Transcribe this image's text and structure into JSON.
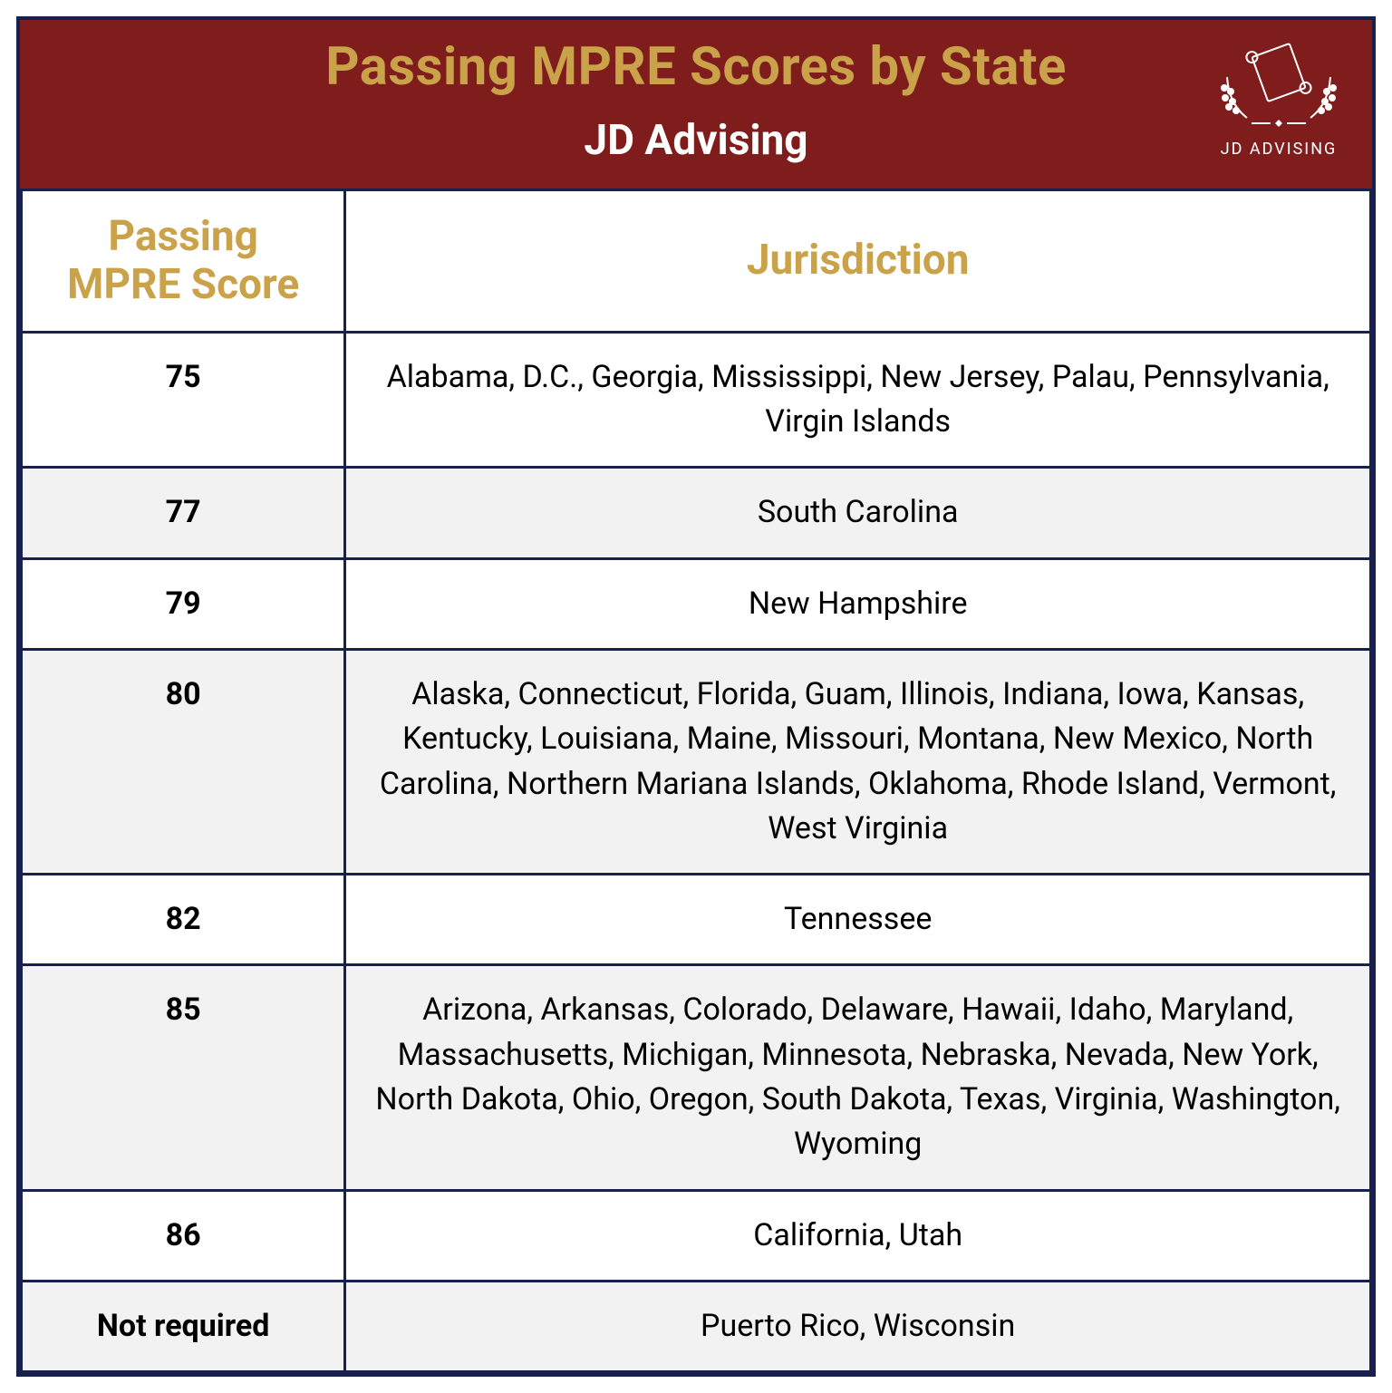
{
  "colors": {
    "border": "#18214d",
    "header_bg": "#7f1d1d",
    "title": "#c9a24a",
    "row_alt_bg": "#f2f2f2"
  },
  "header": {
    "title": "Passing MPRE Scores by State",
    "subtitle": "JD Advising",
    "logo_text": "JD ADVISING"
  },
  "columns": {
    "score": "Passing MPRE Score",
    "jurisdiction": "Jurisdiction"
  },
  "rows": [
    {
      "score": "75",
      "jurisdiction": "Alabama, D.C., Georgia, Mississippi, New Jersey, Palau, Pennsylvania, Virgin Islands",
      "alt": false
    },
    {
      "score": "77",
      "jurisdiction": "South Carolina",
      "alt": true
    },
    {
      "score": "79",
      "jurisdiction": "New Hampshire",
      "alt": false
    },
    {
      "score": "80",
      "jurisdiction": "Alaska, Connecticut, Florida, Guam, Illinois, Indiana, Iowa, Kansas, Kentucky, Louisiana, Maine, Missouri, Montana, New Mexico, North Carolina, Northern Mariana Islands, Oklahoma, Rhode Island, Vermont, West Virginia",
      "alt": true
    },
    {
      "score": "82",
      "jurisdiction": "Tennessee",
      "alt": false
    },
    {
      "score": "85",
      "jurisdiction": "Arizona, Arkansas, Colorado, Delaware, Hawaii, Idaho, Maryland, Massachusetts, Michigan, Minnesota, Nebraska, Nevada, New York, North Dakota, Ohio, Oregon, South Dakota, Texas, Virginia, Washington, Wyoming",
      "alt": true
    },
    {
      "score": "86",
      "jurisdiction": "California, Utah",
      "alt": false
    },
    {
      "score": "Not required",
      "jurisdiction": "Puerto Rico, Wisconsin",
      "alt": true
    }
  ]
}
